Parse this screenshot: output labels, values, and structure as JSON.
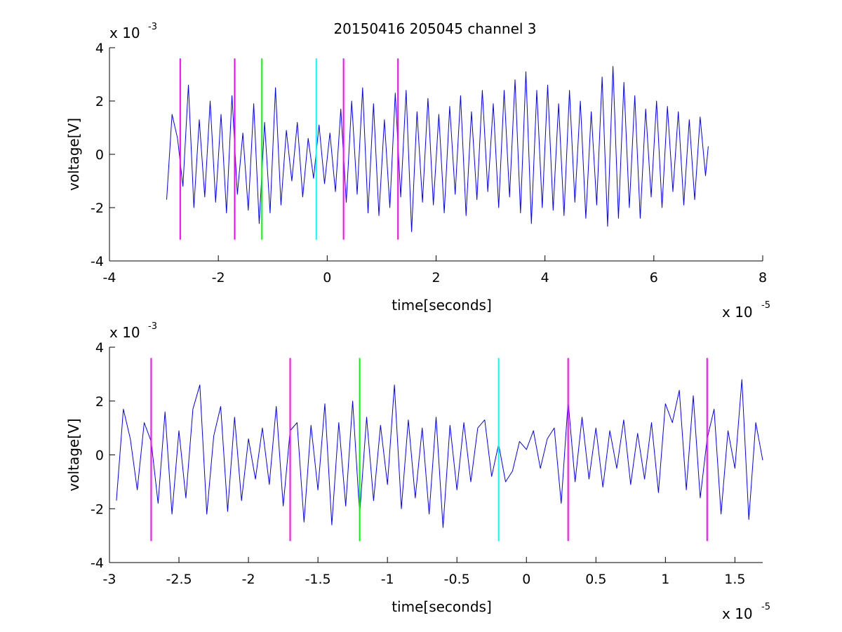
{
  "title": "20150416 205045 channel 3",
  "colors": {
    "signal": "#0000ff",
    "magenta": "#ff00ff",
    "green": "#00ff00",
    "cyan": "#00ffff",
    "axes": "#000000"
  },
  "chart_data": [
    {
      "type": "line",
      "title": "20150416 205045 channel 3",
      "xlabel": "time[seconds]",
      "ylabel": "voltage[V]",
      "x_exponent_label": "x 10",
      "x_exponent": "-5",
      "y_exponent_label": "x 10",
      "y_exponent": "-3",
      "xlim": [
        -4,
        8
      ],
      "ylim": [
        -4,
        4
      ],
      "x_ticks": [
        "-4",
        "-2",
        "0",
        "2",
        "4",
        "6",
        "8"
      ],
      "y_ticks": [
        "-4",
        "-2",
        "0",
        "2",
        "4"
      ],
      "series": [
        {
          "color": "#0000ff",
          "x_range": [
            -2.95,
            7.0
          ],
          "x": [
            -2.95,
            -2.85,
            -2.75,
            -2.65,
            -2.55,
            -2.45,
            -2.35,
            -2.25,
            -2.15,
            -2.05,
            -1.95,
            -1.85,
            -1.75,
            -1.65,
            -1.55,
            -1.45,
            -1.35,
            -1.25,
            -1.15,
            -1.05,
            -0.95,
            -0.85,
            -0.75,
            -0.65,
            -0.55,
            -0.45,
            -0.35,
            -0.25,
            -0.15,
            -0.05,
            0.05,
            0.15,
            0.25,
            0.35,
            0.45,
            0.55,
            0.65,
            0.75,
            0.85,
            0.95,
            1.05,
            1.15,
            1.25,
            1.35,
            1.45,
            1.55,
            1.65,
            1.75,
            1.85,
            1.95,
            2.05,
            2.15,
            2.25,
            2.35,
            2.45,
            2.55,
            2.65,
            2.75,
            2.85,
            2.95,
            3.05,
            3.15,
            3.25,
            3.35,
            3.45,
            3.55,
            3.65,
            3.75,
            3.85,
            3.95,
            4.05,
            4.15,
            4.25,
            4.35,
            4.45,
            4.55,
            4.65,
            4.75,
            4.85,
            4.95,
            5.05,
            5.15,
            5.25,
            5.35,
            5.45,
            5.55,
            5.65,
            5.75,
            5.85,
            5.95,
            6.05,
            6.15,
            6.25,
            6.35,
            6.45,
            6.55,
            6.65,
            6.75,
            6.85,
            6.95,
            7.0
          ],
          "y": [
            -1.7,
            1.5,
            0.6,
            -1.2,
            2.6,
            -2.0,
            1.3,
            -1.6,
            2.0,
            -1.8,
            1.5,
            -2.2,
            2.2,
            -1.5,
            0.8,
            -2.1,
            1.9,
            -2.6,
            1.2,
            -2.2,
            2.5,
            -1.9,
            0.9,
            -1.0,
            1.2,
            -1.6,
            0.6,
            -0.9,
            1.1,
            -1.1,
            0.8,
            -1.4,
            1.7,
            -1.8,
            2.0,
            -1.5,
            2.5,
            -2.2,
            1.9,
            -2.3,
            1.3,
            -2.0,
            2.3,
            -1.6,
            2.4,
            -2.9,
            1.6,
            -1.8,
            2.1,
            -1.9,
            1.5,
            -2.2,
            1.8,
            -1.5,
            2.2,
            -2.3,
            1.6,
            -1.7,
            2.4,
            -1.4,
            1.9,
            -2.0,
            2.4,
            -1.6,
            2.8,
            -2.2,
            3.1,
            -2.6,
            2.4,
            -2.0,
            2.6,
            -2.1,
            1.9,
            -2.3,
            2.4,
            -1.8,
            2.0,
            -2.4,
            1.6,
            -1.9,
            2.9,
            -2.7,
            3.3,
            -2.4,
            2.7,
            -2.0,
            2.2,
            -2.4,
            1.7,
            -1.6,
            2.0,
            -2.0,
            1.8,
            -1.4,
            1.6,
            -1.9,
            1.3,
            -1.7,
            1.4,
            -0.8,
            0.3
          ]
        }
      ],
      "markers": [
        {
          "x": -2.7,
          "color": "#ff00ff",
          "y_range": [
            -3.2,
            3.6
          ]
        },
        {
          "x": -1.7,
          "color": "#ff00ff",
          "y_range": [
            -3.2,
            3.6
          ]
        },
        {
          "x": -1.2,
          "color": "#00ff00",
          "y_range": [
            -3.2,
            3.6
          ]
        },
        {
          "x": -0.2,
          "color": "#00ffff",
          "y_range": [
            -3.2,
            3.6
          ]
        },
        {
          "x": 0.3,
          "color": "#ff00ff",
          "y_range": [
            -3.2,
            3.6
          ]
        },
        {
          "x": 1.3,
          "color": "#ff00ff",
          "y_range": [
            -3.2,
            3.6
          ]
        }
      ]
    },
    {
      "type": "line",
      "xlabel": "time[seconds]",
      "ylabel": "voltage[V]",
      "x_exponent_label": "x 10",
      "x_exponent": "-5",
      "y_exponent_label": "x 10",
      "y_exponent": "-3",
      "xlim": [
        -3.0,
        1.7
      ],
      "ylim": [
        -4,
        4
      ],
      "x_ticks": [
        "-3",
        "-2.5",
        "-2",
        "-1.5",
        "-1",
        "-0.5",
        "0",
        "0.5",
        "1",
        "1.5"
      ],
      "y_ticks": [
        "-4",
        "-2",
        "0",
        "2",
        "4"
      ],
      "series": [
        {
          "color": "#0000ff",
          "x_range": [
            -2.95,
            1.7
          ],
          "x": [
            -2.95,
            -2.9,
            -2.85,
            -2.8,
            -2.75,
            -2.7,
            -2.65,
            -2.6,
            -2.55,
            -2.5,
            -2.45,
            -2.4,
            -2.35,
            -2.3,
            -2.25,
            -2.2,
            -2.15,
            -2.1,
            -2.05,
            -2.0,
            -1.95,
            -1.9,
            -1.85,
            -1.8,
            -1.75,
            -1.7,
            -1.65,
            -1.6,
            -1.55,
            -1.5,
            -1.45,
            -1.4,
            -1.35,
            -1.3,
            -1.25,
            -1.2,
            -1.15,
            -1.1,
            -1.05,
            -1.0,
            -0.95,
            -0.9,
            -0.85,
            -0.8,
            -0.75,
            -0.7,
            -0.65,
            -0.6,
            -0.55,
            -0.5,
            -0.45,
            -0.4,
            -0.35,
            -0.3,
            -0.25,
            -0.2,
            -0.15,
            -0.1,
            -0.05,
            0.0,
            0.05,
            0.1,
            0.15,
            0.2,
            0.25,
            0.3,
            0.35,
            0.4,
            0.45,
            0.5,
            0.55,
            0.6,
            0.65,
            0.7,
            0.75,
            0.8,
            0.85,
            0.9,
            0.95,
            1.0,
            1.05,
            1.1,
            1.15,
            1.2,
            1.25,
            1.3,
            1.35,
            1.4,
            1.45,
            1.5,
            1.55,
            1.6,
            1.65,
            1.7
          ],
          "y": [
            -1.7,
            1.7,
            0.6,
            -1.3,
            1.2,
            0.5,
            -1.8,
            1.6,
            -2.2,
            0.9,
            -1.6,
            1.7,
            2.6,
            -2.2,
            0.7,
            1.8,
            -2.1,
            1.4,
            -1.7,
            0.6,
            -0.9,
            1.0,
            -1.1,
            1.8,
            -1.9,
            0.9,
            1.2,
            -2.5,
            1.1,
            -1.3,
            1.9,
            -2.6,
            1.2,
            -1.9,
            2.0,
            -2.2,
            1.4,
            -1.7,
            1.1,
            -1.1,
            2.6,
            -2.0,
            1.3,
            -1.6,
            1.0,
            -2.2,
            1.4,
            -2.7,
            1.1,
            -1.3,
            1.2,
            -1.0,
            1.0,
            1.3,
            -0.8,
            0.4,
            -1.0,
            -0.6,
            0.5,
            0.2,
            0.9,
            -0.5,
            0.6,
            1.0,
            -1.8,
            2.0,
            -1.0,
            1.4,
            -0.9,
            1.0,
            -1.2,
            0.9,
            -0.5,
            1.3,
            -1.1,
            0.8,
            -0.9,
            1.2,
            -1.4,
            1.9,
            1.2,
            2.4,
            -1.3,
            2.2,
            -1.6,
            0.6,
            1.7,
            -2.2,
            0.9,
            -0.5,
            2.8,
            -2.4,
            1.2,
            -0.2
          ]
        }
      ],
      "markers": [
        {
          "x": -2.7,
          "color": "#ff00ff",
          "y_range": [
            -3.2,
            3.6
          ]
        },
        {
          "x": -1.7,
          "color": "#ff00ff",
          "y_range": [
            -3.2,
            3.6
          ]
        },
        {
          "x": -1.2,
          "color": "#00ff00",
          "y_range": [
            -3.2,
            3.6
          ]
        },
        {
          "x": -0.2,
          "color": "#00ffff",
          "y_range": [
            -3.2,
            3.6
          ]
        },
        {
          "x": 0.3,
          "color": "#ff00ff",
          "y_range": [
            -3.2,
            3.6
          ]
        },
        {
          "x": 1.3,
          "color": "#ff00ff",
          "y_range": [
            -3.2,
            3.6
          ]
        }
      ]
    }
  ]
}
